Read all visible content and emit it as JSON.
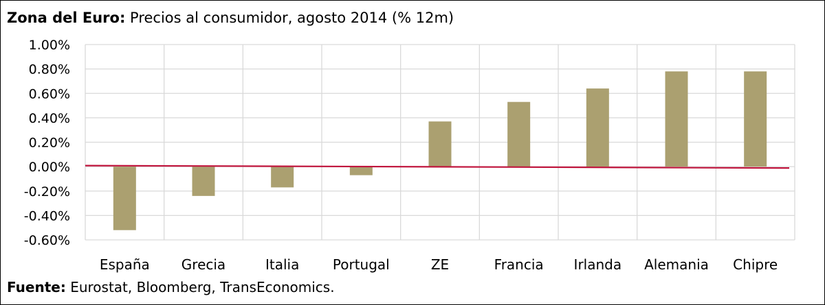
{
  "title": {
    "bold": "Zona del Euro:",
    "rest": " Precios al consumidor, agosto 2014 (% 12m)"
  },
  "source": {
    "bold": "Fuente:",
    "rest": " Eurostat, Bloomberg, TransEconomics."
  },
  "colors": {
    "bar": "#ABA070",
    "zero_line": "#C0143C",
    "grid": "#D9D9D9"
  },
  "chart_data": {
    "type": "bar",
    "categories": [
      "España",
      "Grecia",
      "Italia",
      "Portugal",
      "ZE",
      "Francia",
      "Irlanda",
      "Alemania",
      "Chipre"
    ],
    "values": [
      -0.52,
      -0.24,
      -0.17,
      -0.07,
      0.37,
      0.53,
      0.64,
      0.78,
      0.78
    ],
    "ylim": [
      -0.6,
      1.0
    ],
    "yticks": [
      1.0,
      0.8,
      0.6,
      0.4,
      0.2,
      0.0,
      -0.2,
      -0.4,
      -0.6
    ],
    "ytick_labels": [
      "1.00%",
      "0.80%",
      "0.60%",
      "0.40%",
      "0.20%",
      "0.00%",
      "-0.20%",
      "-0.40%",
      "-0.60%"
    ],
    "grid": true
  }
}
